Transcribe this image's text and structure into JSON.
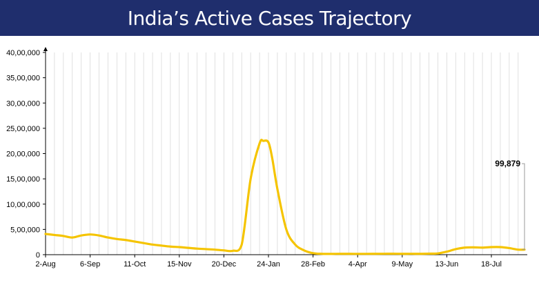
{
  "header": {
    "title": "India’s Active Cases Trajectory"
  },
  "colors": {
    "banner": "#1f2e6d",
    "line": "#f5c400",
    "grid": "#d9d9d9",
    "axis": "#000000"
  },
  "chart_data": {
    "type": "line",
    "title": "India’s Active Cases Trajectory",
    "xlabel": "",
    "ylabel": "",
    "ylim": [
      0,
      4000000
    ],
    "y_ticks": [
      "0",
      "5,00,000",
      "10,00,000",
      "15,00,000",
      "20,00,000",
      "25,00,000",
      "30,00,000",
      "35,00,000",
      "40,00,000"
    ],
    "x_ticks": [
      "2-Aug",
      "6-Sep",
      "11-Oct",
      "15-Nov",
      "20-Dec",
      "24-Jan",
      "28-Feb",
      "4-Apr",
      "9-May",
      "13-Jun",
      "18-Jul"
    ],
    "grid": "vertical",
    "legend": "none",
    "series": [
      {
        "x": [
          "2-Aug",
          "9-Aug",
          "16-Aug",
          "23-Aug",
          "30-Aug",
          "6-Sep",
          "13-Sep",
          "20-Sep",
          "27-Sep",
          "4-Oct",
          "11-Oct",
          "18-Oct",
          "25-Oct",
          "1-Nov",
          "8-Nov",
          "15-Nov",
          "22-Nov",
          "29-Nov",
          "6-Dec",
          "13-Dec",
          "20-Dec",
          "27-Dec",
          "3-Jan",
          "10-Jan",
          "17-Jan",
          "20-Jan",
          "24-Jan",
          "27-Jan",
          "31-Jan",
          "7-Feb",
          "14-Feb",
          "21-Feb",
          "28-Feb",
          "7-Mar",
          "14-Mar",
          "21-Mar",
          "28-Mar",
          "4-Apr",
          "11-Apr",
          "18-Apr",
          "25-Apr",
          "2-May",
          "9-May",
          "16-May",
          "23-May",
          "30-May",
          "6-Jun",
          "13-Jun",
          "20-Jun",
          "27-Jun",
          "4-Jul",
          "11-Jul",
          "18-Jul",
          "25-Jul",
          "1-Aug",
          "8-Aug",
          "13-Aug"
        ],
        "values": [
          410000,
          390000,
          370000,
          340000,
          380000,
          400000,
          380000,
          340000,
          310000,
          290000,
          260000,
          230000,
          200000,
          180000,
          160000,
          150000,
          135000,
          120000,
          110000,
          100000,
          85000,
          77000,
          200000,
          1500000,
          2200000,
          2250000,
          2220000,
          1900000,
          1300000,
          500000,
          200000,
          85000,
          30000,
          17000,
          15000,
          17000,
          17000,
          16000,
          16000,
          17000,
          18000,
          19000,
          17000,
          18000,
          17000,
          20000,
          25000,
          60000,
          110000,
          140000,
          145000,
          140000,
          150000,
          150000,
          130000,
          100000,
          99879
        ]
      }
    ],
    "annotations": [
      {
        "label": "99,879",
        "x": "13-Aug",
        "y": 99879
      }
    ]
  }
}
